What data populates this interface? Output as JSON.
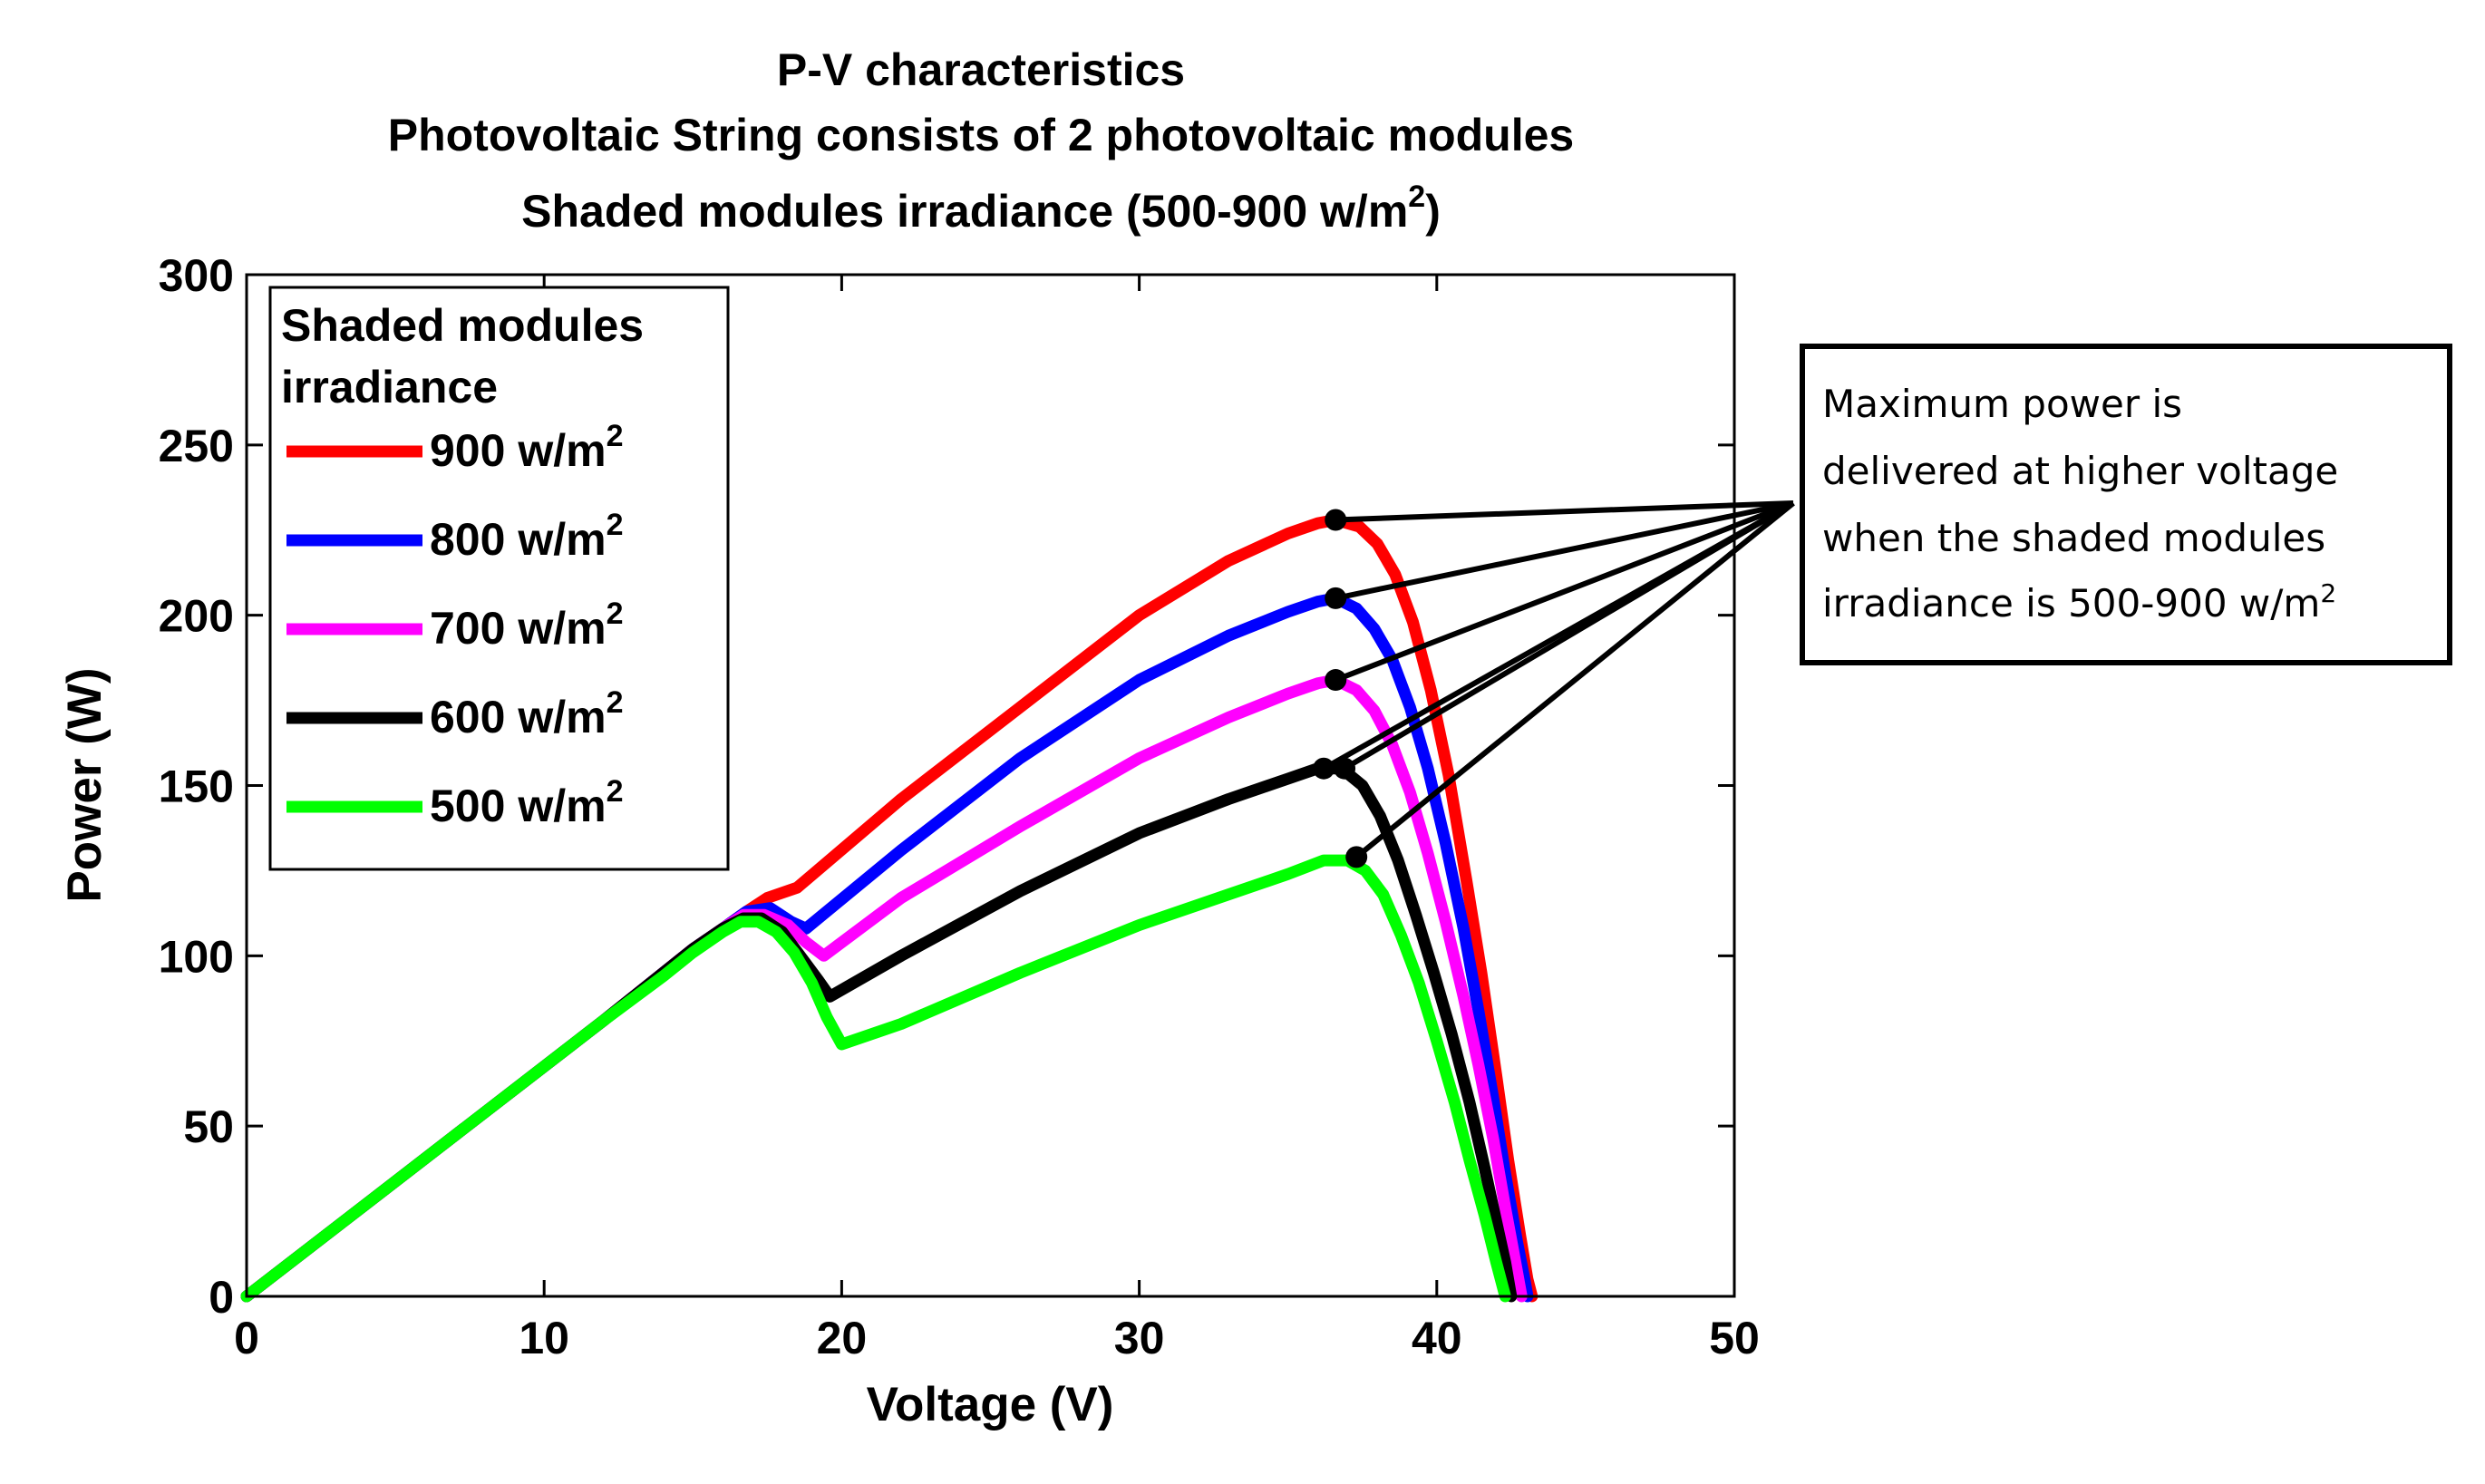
{
  "chart_data": {
    "type": "line",
    "title": {
      "line1": "P-V characteristics",
      "line2": "Photovoltaic String consists of 2 photovoltaic modules",
      "line3_prefix": "Shaded modules irradiance (500-900 w/m",
      "line3_sup": "2",
      "line3_suffix": ")"
    },
    "xlabel": "Voltage (V)",
    "ylabel": "Power (W)",
    "xlim": [
      0,
      50
    ],
    "ylim": [
      0,
      300
    ],
    "xticks": [
      0,
      10,
      20,
      30,
      40,
      50
    ],
    "yticks": [
      0,
      50,
      100,
      150,
      200,
      250,
      300
    ],
    "grid": false,
    "legend": {
      "title_line1": "Shaded modules",
      "title_line2": "irradiance",
      "placement": "top-left"
    },
    "series": [
      {
        "name": "900 w/m2",
        "label": "900 w/m",
        "sup": "2",
        "color": "#ff0000",
        "x": [
          0,
          4,
          8,
          12,
          14,
          15,
          16,
          16.8,
          17.5,
          18.5,
          22,
          26,
          30,
          33,
          35,
          36,
          36.6,
          37.4,
          38,
          38.6,
          39.2,
          39.8,
          40.4,
          41,
          41.5,
          42,
          42.4,
          42.8,
          43.05,
          43.2
        ],
        "y": [
          0,
          27,
          54,
          81,
          95,
          102,
          108,
          113,
          117,
          120,
          146,
          173,
          200,
          216,
          224,
          227,
          228,
          226,
          221,
          212,
          198,
          178,
          153,
          122,
          95,
          65,
          40,
          18,
          5,
          0
        ]
      },
      {
        "name": "800 w/m2",
        "label": "800 w/m",
        "sup": "2",
        "color": "#0000ff",
        "x": [
          0,
          4,
          8,
          12,
          14,
          15,
          16,
          16.8,
          17.6,
          18.3,
          18.8,
          22,
          26,
          30,
          33,
          35,
          36,
          36.6,
          37.3,
          37.9,
          38.5,
          39.1,
          39.7,
          40.3,
          40.9,
          41.4,
          41.9,
          42.3,
          42.7,
          42.95,
          43.05
        ],
        "y": [
          0,
          27,
          54,
          81,
          95,
          102,
          108,
          113,
          114,
          110,
          108,
          131,
          158,
          181,
          194,
          201,
          204,
          205,
          202,
          196,
          187,
          173,
          155,
          133,
          108,
          84,
          58,
          36,
          16,
          5,
          0
        ]
      },
      {
        "name": "700 w/m2",
        "label": "700 w/m",
        "sup": "2",
        "color": "#ff00ff",
        "x": [
          0,
          4,
          8,
          12,
          14,
          15,
          16,
          16.7,
          17.4,
          18.2,
          18.8,
          19.4,
          22,
          26,
          30,
          33,
          35,
          36,
          36.6,
          37.3,
          37.9,
          38.5,
          39.1,
          39.7,
          40.3,
          40.9,
          41.4,
          41.9,
          42.3,
          42.6,
          42.85
        ],
        "y": [
          0,
          27,
          54,
          81,
          95,
          102,
          108,
          112,
          112,
          109,
          104,
          100,
          117,
          138,
          158,
          170,
          177,
          180,
          181,
          178,
          172,
          162,
          148,
          130,
          110,
          88,
          68,
          46,
          26,
          12,
          0
        ]
      },
      {
        "name": "600 w/m2",
        "label": "600 w/m",
        "sup": "2",
        "color": "#000000",
        "x": [
          0,
          4,
          8,
          12,
          14,
          15,
          16,
          16.7,
          17.3,
          18,
          18.6,
          19.2,
          19.6,
          22,
          26,
          30,
          33,
          35,
          36,
          36.8,
          37.5,
          38.1,
          38.7,
          39.3,
          39.9,
          40.5,
          41.1,
          41.6,
          42,
          42.3,
          42.5
        ],
        "y": [
          0,
          27,
          54,
          81,
          95,
          102,
          108,
          111,
          111,
          107,
          100,
          93,
          88,
          100,
          119,
          136,
          146,
          152,
          155,
          155,
          150,
          141,
          128,
          112,
          95,
          77,
          57,
          38,
          22,
          10,
          0
        ]
      },
      {
        "name": "500 w/m2",
        "label": "500 w/m",
        "sup": "2",
        "color": "#00ff00",
        "x": [
          0,
          4,
          8,
          12,
          14,
          15,
          16,
          16.6,
          17.2,
          17.8,
          18.4,
          19,
          19.5,
          20,
          22,
          26,
          30,
          33,
          35,
          36.2,
          37,
          37.6,
          38.2,
          38.8,
          39.4,
          40,
          40.6,
          41.1,
          41.6,
          42,
          42.3
        ],
        "y": [
          0,
          27,
          54,
          81,
          94,
          101,
          107,
          110,
          110,
          107,
          101,
          92,
          82,
          74,
          80,
          95,
          109,
          118,
          124,
          128,
          128,
          125,
          118,
          106,
          92,
          75,
          57,
          40,
          24,
          10,
          0
        ]
      }
    ],
    "mpp_points": [
      {
        "x": 36.6,
        "y": 228
      },
      {
        "x": 36.6,
        "y": 205
      },
      {
        "x": 36.6,
        "y": 181
      },
      {
        "x": 36.2,
        "y": 155
      },
      {
        "x": 36.9,
        "y": 155
      },
      {
        "x": 37.3,
        "y": 129
      }
    ],
    "annotation": {
      "line1": "Maximum power is",
      "line2": "delivered at higher voltage",
      "line3": "when the shaded modules",
      "line4_prefix": "irradiance is 500-900 w/m",
      "line4_sup": "2",
      "placement": "right"
    }
  }
}
